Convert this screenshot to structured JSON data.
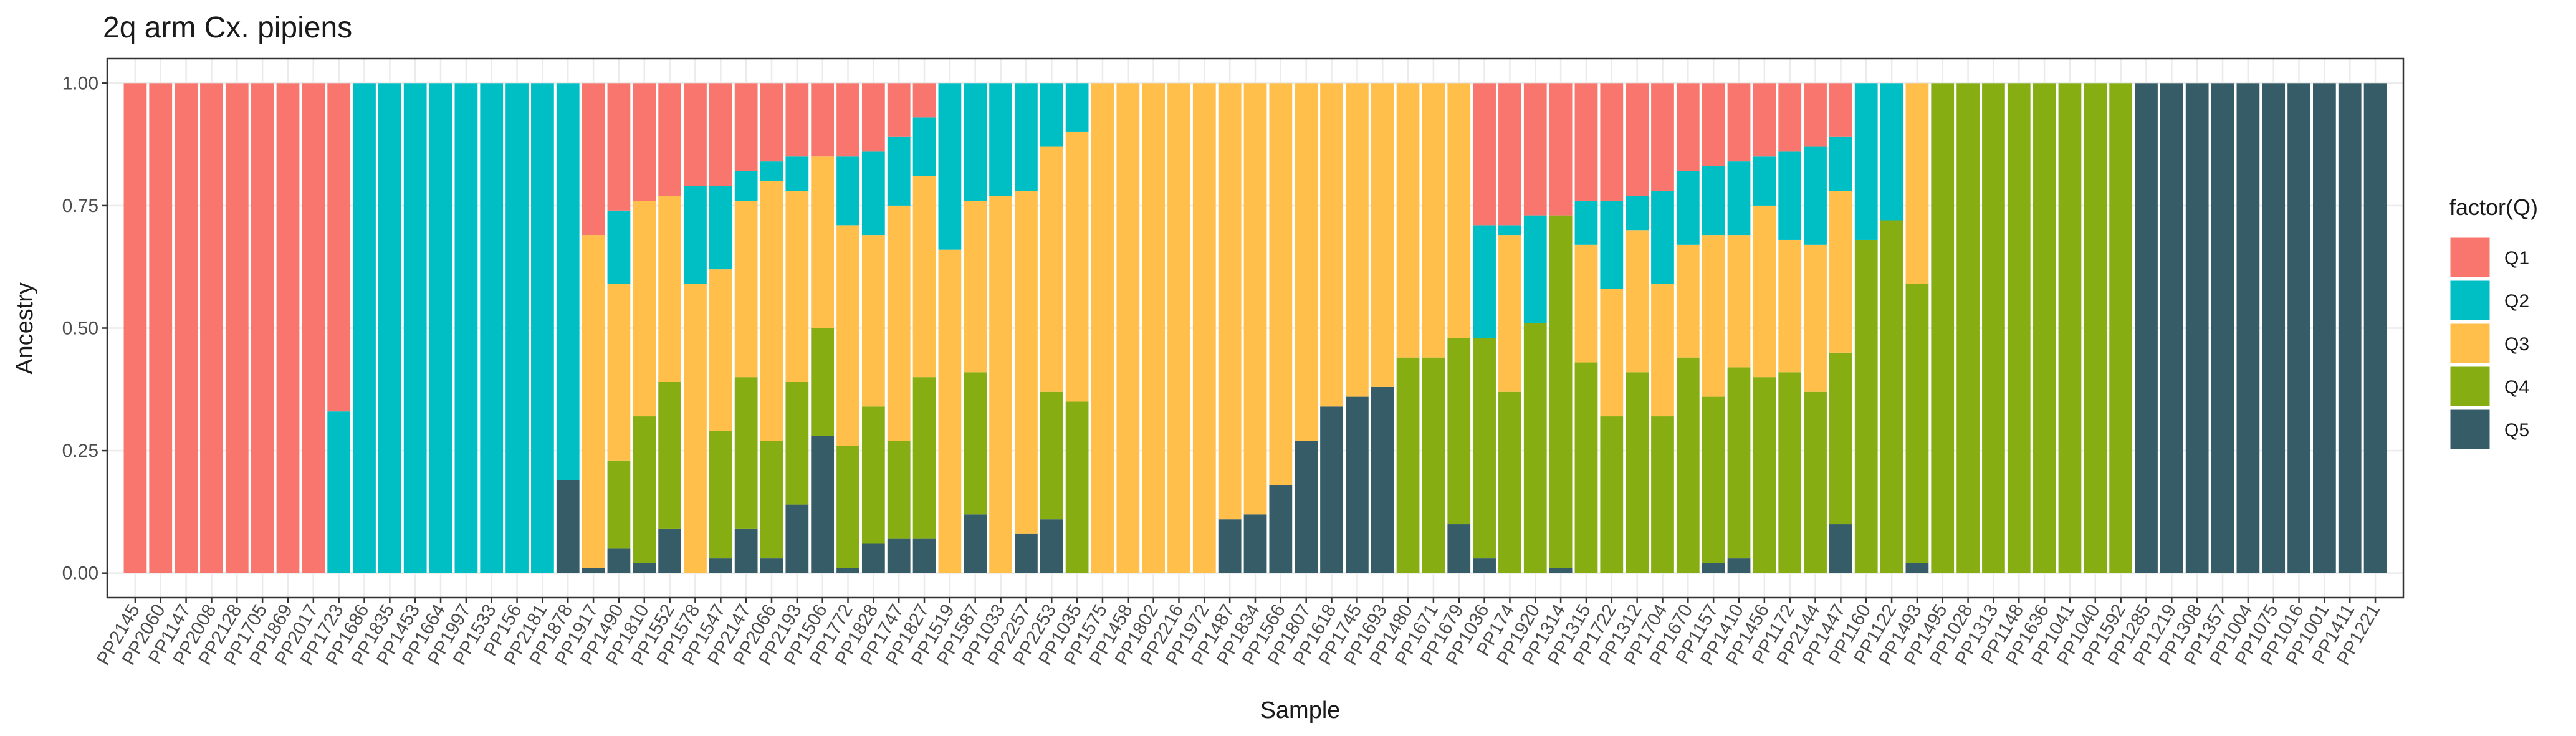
{
  "chart_data": {
    "type": "stacked_bar",
    "title": "2q arm Cx. pipiens",
    "x_label": "Sample",
    "y_label": "Ancestry",
    "legend_title": "factor(Q)",
    "legend_position": "right",
    "grid": true,
    "categories": [
      "PP2145",
      "PP2060",
      "PP1147",
      "PP2008",
      "PP2128",
      "PP1705",
      "PP1869",
      "PP2017",
      "PP1723",
      "PP1686",
      "PP1835",
      "PP1453",
      "PP1664",
      "PP1997",
      "PP1533",
      "PP156",
      "PP2181",
      "PP1878",
      "PP1917",
      "PP1490",
      "PP1810",
      "PP1552",
      "PP1578",
      "PP1547",
      "PP2147",
      "PP2066",
      "PP2193",
      "PP1506",
      "PP1772",
      "PP1828",
      "PP1747",
      "PP1827",
      "PP1519",
      "PP1587",
      "PP1033",
      "PP2257",
      "PP2253",
      "PP1035",
      "PP1575",
      "PP1458",
      "PP1802",
      "PP2216",
      "PP1972",
      "PP1487",
      "PP1834",
      "PP1566",
      "PP1807",
      "PP1618",
      "PP1745",
      "PP1693",
      "PP1480",
      "PP1671",
      "PP1679",
      "PP1036",
      "PP174",
      "PP1920",
      "PP1314",
      "PP1315",
      "PP1722",
      "PP1312",
      "PP1704",
      "PP1670",
      "PP1157",
      "PP1410",
      "PP1456",
      "PP1172",
      "PP2144",
      "PP1447",
      "PP1160",
      "PP1122",
      "PP1493",
      "PP1495",
      "PP1028",
      "PP1313",
      "PP1148",
      "PP1636",
      "PP1041",
      "PP1040",
      "PP1592",
      "PP1285",
      "PP1219",
      "PP1308",
      "PP1357",
      "PP1004",
      "PP1075",
      "PP1016",
      "PP1001",
      "PP1411",
      "PP1221"
    ],
    "series": [
      {
        "name": "Q1",
        "color": "#F8766D",
        "values": [
          1,
          1,
          1,
          1,
          1,
          1,
          1,
          1,
          0.67,
          0,
          0,
          0,
          0,
          0,
          0,
          0,
          0,
          0,
          0.31,
          0.26,
          0.24,
          0.23,
          0.21,
          0.21,
          0.18,
          0.16,
          0.15,
          0.15,
          0.15,
          0.14,
          0.11,
          0.07,
          0,
          0,
          0,
          0,
          0,
          0,
          0,
          0,
          0,
          0,
          0,
          0,
          0,
          0,
          0,
          0,
          0,
          0,
          0,
          0,
          0,
          0.29,
          0.29,
          0.27,
          0.27,
          0.24,
          0.24,
          0.23,
          0.22,
          0.18,
          0.17,
          0.16,
          0.15,
          0.14,
          0.13,
          0.11,
          0,
          0,
          0,
          0,
          0,
          0,
          0,
          0,
          0,
          0,
          0,
          0,
          0,
          0,
          0,
          0,
          0,
          0,
          0,
          0,
          0
        ]
      },
      {
        "name": "Q2",
        "color": "#00BFC4",
        "values": [
          0,
          0,
          0,
          0,
          0,
          0,
          0,
          0,
          0.33,
          1,
          1,
          1,
          1,
          1,
          1,
          1,
          1,
          0.81,
          0,
          0.15,
          0,
          0,
          0.2,
          0.17,
          0.06,
          0.04,
          0.07,
          0,
          0.14,
          0.17,
          0.14,
          0.12,
          0.34,
          0.24,
          0.23,
          0.22,
          0.13,
          0.1,
          0,
          0,
          0,
          0,
          0,
          0,
          0,
          0,
          0,
          0,
          0,
          0,
          0,
          0,
          0,
          0.23,
          0.02,
          0.22,
          0,
          0.09,
          0.18,
          0.07,
          0.19,
          0.15,
          0.14,
          0.15,
          0.1,
          0.18,
          0.2,
          0.11,
          0.32,
          0.28,
          0,
          0,
          0,
          0,
          0,
          0,
          0,
          0,
          0,
          0,
          0,
          0,
          0,
          0,
          0,
          0,
          0,
          0,
          0
        ]
      },
      {
        "name": "Q3",
        "color": "#FFBF4A",
        "values": [
          0,
          0,
          0,
          0,
          0,
          0,
          0,
          0,
          0,
          0,
          0,
          0,
          0,
          0,
          0,
          0,
          0,
          0,
          0.68,
          0.36,
          0.44,
          0.38,
          0.59,
          0.33,
          0.36,
          0.53,
          0.39,
          0.35,
          0.45,
          0.35,
          0.48,
          0.41,
          0.66,
          0.35,
          0.77,
          0.7,
          0.5,
          0.55,
          1,
          1,
          1,
          1,
          1,
          0.89,
          0.88,
          0.82,
          0.73,
          0.66,
          0.64,
          0.62,
          0.56,
          0.56,
          0.52,
          0,
          0.32,
          0,
          0,
          0.24,
          0.26,
          0.29,
          0.27,
          0.23,
          0.33,
          0.27,
          0.35,
          0.27,
          0.3,
          0.33,
          0,
          0,
          0.41,
          0,
          0,
          0,
          0,
          0,
          0,
          0,
          0,
          0,
          0,
          0,
          0,
          0,
          0,
          0,
          0,
          0,
          0
        ]
      },
      {
        "name": "Q4",
        "color": "#86AE12",
        "values": [
          0,
          0,
          0,
          0,
          0,
          0,
          0,
          0,
          0,
          0,
          0,
          0,
          0,
          0,
          0,
          0,
          0,
          0,
          0,
          0.18,
          0.3,
          0.3,
          0,
          0.26,
          0.31,
          0.24,
          0.25,
          0.22,
          0.25,
          0.28,
          0.2,
          0.33,
          0,
          0.29,
          0,
          0,
          0.26,
          0.35,
          0,
          0,
          0,
          0,
          0,
          0,
          0,
          0,
          0,
          0,
          0,
          0,
          0.44,
          0.44,
          0.38,
          0.45,
          0.37,
          0.51,
          0.72,
          0.43,
          0.32,
          0.41,
          0.32,
          0.44,
          0.34,
          0.39,
          0.4,
          0.41,
          0.37,
          0.35,
          0.68,
          0.72,
          0.57,
          1,
          1,
          1,
          1,
          1,
          1,
          1,
          1,
          0,
          0,
          0,
          0,
          0,
          0,
          0,
          0,
          0,
          0
        ]
      },
      {
        "name": "Q5",
        "color": "#355C67",
        "values": [
          0,
          0,
          0,
          0,
          0,
          0,
          0,
          0,
          0,
          0,
          0,
          0,
          0,
          0,
          0,
          0,
          0,
          0.19,
          0.01,
          0.05,
          0.02,
          0.09,
          0,
          0.03,
          0.09,
          0.03,
          0.14,
          0.28,
          0.01,
          0.06,
          0.07,
          0.07,
          0,
          0.12,
          0,
          0.08,
          0.11,
          0,
          0,
          0,
          0,
          0,
          0,
          0.11,
          0.12,
          0.18,
          0.27,
          0.34,
          0.36,
          0.38,
          0,
          0,
          0.1,
          0.03,
          0,
          0,
          0.01,
          0,
          0,
          0,
          0,
          0,
          0.02,
          0.03,
          0,
          0,
          0,
          0.1,
          0,
          0,
          0.02,
          0,
          0,
          0,
          0,
          0,
          0,
          0,
          0,
          1,
          1,
          1,
          1,
          1,
          1,
          1,
          1,
          1,
          1
        ]
      }
    ],
    "ylim": [
      -0.05,
      1.05
    ],
    "yticks": [
      {
        "value": 0,
        "label": "0.00"
      },
      {
        "value": 0.25,
        "label": "0.25"
      },
      {
        "value": 0.5,
        "label": "0.50"
      },
      {
        "value": 0.75,
        "label": "0.75"
      },
      {
        "value": 1,
        "label": "1.00"
      }
    ]
  }
}
